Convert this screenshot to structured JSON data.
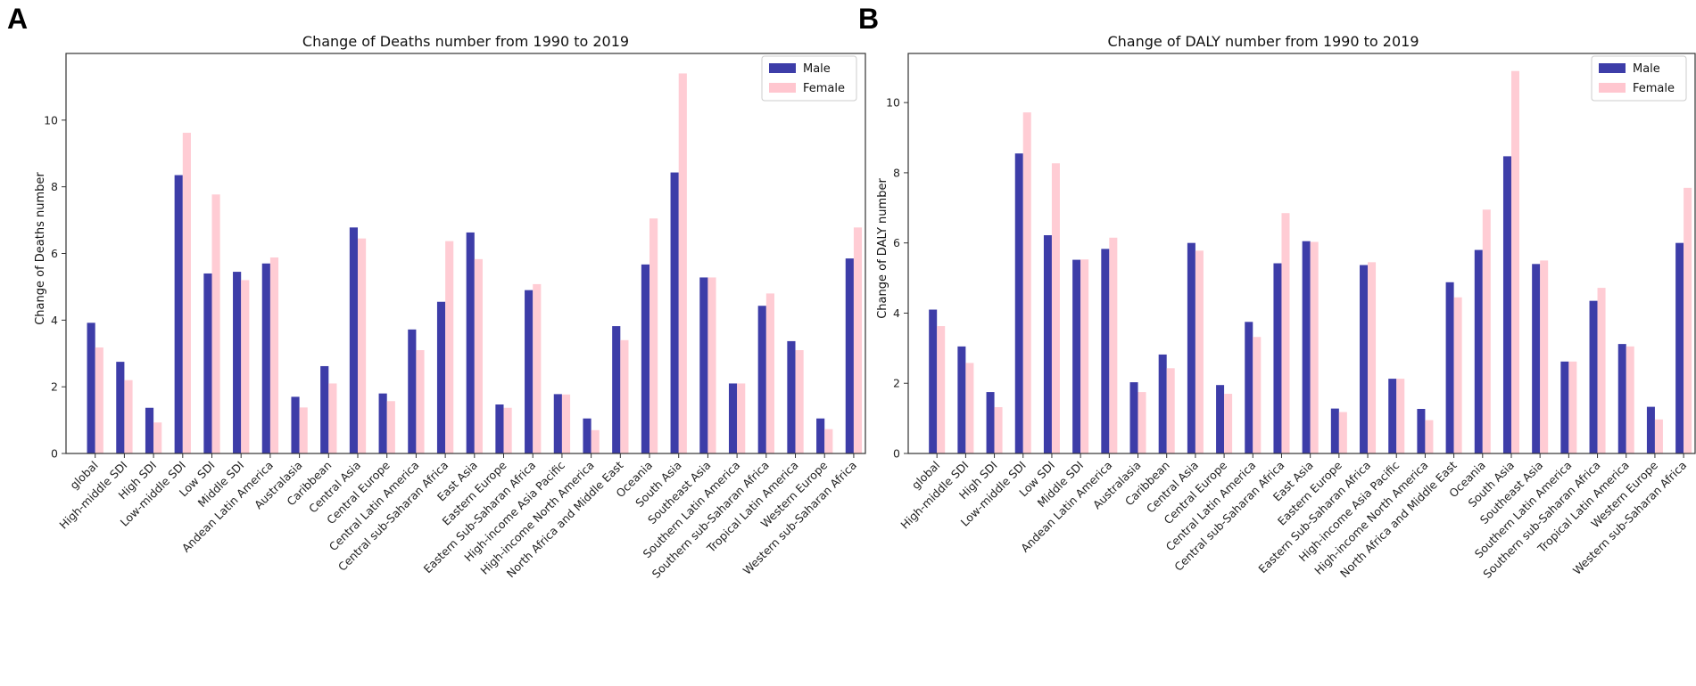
{
  "colors": {
    "male": "#3d3da8",
    "female": "#ffc6cf",
    "axis": "#333333"
  },
  "chart_data": [
    {
      "panel": "A",
      "type": "bar",
      "title": "Change of Deaths number from 1990 to 2019",
      "ylabel": "Change of Deaths number",
      "xlabel": "",
      "ylim": [
        0,
        12
      ],
      "yticks": [
        0,
        2,
        4,
        6,
        8,
        10
      ],
      "legend": [
        "Male",
        "Female"
      ],
      "legend_position": "top-right",
      "categories": [
        "global",
        "High-middle SDI",
        "High SDI",
        "Low-middle SDI",
        "Low SDI",
        "Middle SDI",
        "Andean Latin America",
        "Australasia",
        "Caribbean",
        "Central Asia",
        "Central Europe",
        "Central Latin America",
        "Central sub-Saharan Africa",
        "East Asia",
        "Eastern Europe",
        "Eastern Sub-Saharan Africa",
        "High-income Asia Pacific",
        "High-income North America",
        "North Africa and Middle East",
        "Oceania",
        "South Asia",
        "Southeast Asia",
        "Southern Latin America",
        "Southern sub-Saharan Africa",
        "Tropical Latin America",
        "Western Europe",
        "Western sub-Saharan Africa"
      ],
      "series": [
        {
          "name": "Male",
          "values": [
            3.92,
            2.75,
            1.37,
            8.35,
            5.4,
            5.45,
            5.7,
            1.7,
            2.62,
            6.78,
            1.8,
            3.72,
            4.55,
            6.63,
            1.47,
            4.9,
            1.78,
            1.05,
            3.82,
            5.67,
            8.43,
            5.28,
            2.1,
            4.43,
            3.37,
            1.05,
            5.85
          ]
        },
        {
          "name": "Female",
          "values": [
            3.18,
            2.2,
            0.93,
            9.62,
            7.77,
            5.2,
            5.88,
            1.38,
            2.1,
            6.45,
            1.57,
            3.1,
            6.37,
            5.83,
            1.37,
            5.08,
            1.77,
            0.7,
            3.4,
            7.05,
            11.4,
            5.28,
            2.1,
            4.8,
            3.1,
            0.73,
            6.78
          ]
        }
      ]
    },
    {
      "panel": "B",
      "type": "bar",
      "title": "Change of DALY number from 1990 to 2019",
      "ylabel": "Change of DALY number",
      "xlabel": "",
      "ylim": [
        0,
        11.4
      ],
      "yticks": [
        0,
        2,
        4,
        6,
        8,
        10
      ],
      "legend": [
        "Male",
        "Female"
      ],
      "legend_position": "top-right",
      "categories": [
        "global",
        "High-middle SDI",
        "High SDI",
        "Low-middle SDI",
        "Low SDI",
        "Middle SDI",
        "Andean Latin America",
        "Australasia",
        "Caribbean",
        "Central Asia",
        "Central Europe",
        "Central Latin America",
        "Central sub-Saharan Africa",
        "East Asia",
        "Eastern Europe",
        "Eastern Sub-Saharan Africa",
        "High-income Asia Pacific",
        "High-income North America",
        "North Africa and Middle East",
        "Oceania",
        "South Asia",
        "Southeast Asia",
        "Southern Latin America",
        "Southern sub-Saharan Africa",
        "Tropical Latin America",
        "Western Europe",
        "Western sub-Saharan Africa"
      ],
      "series": [
        {
          "name": "Male",
          "values": [
            4.1,
            3.05,
            1.75,
            8.55,
            6.22,
            5.52,
            5.83,
            2.03,
            2.82,
            6.0,
            1.95,
            3.75,
            5.42,
            6.05,
            1.28,
            5.37,
            2.13,
            1.27,
            4.88,
            5.8,
            8.47,
            5.4,
            2.62,
            4.35,
            3.12,
            1.33,
            6.0
          ]
        },
        {
          "name": "Female",
          "values": [
            3.63,
            2.58,
            1.32,
            9.72,
            8.27,
            5.53,
            6.15,
            1.75,
            2.43,
            5.78,
            1.7,
            3.32,
            6.85,
            6.03,
            1.18,
            5.45,
            2.13,
            0.95,
            4.45,
            6.95,
            10.9,
            5.5,
            2.62,
            4.72,
            3.05,
            0.97,
            7.57
          ]
        }
      ]
    }
  ]
}
